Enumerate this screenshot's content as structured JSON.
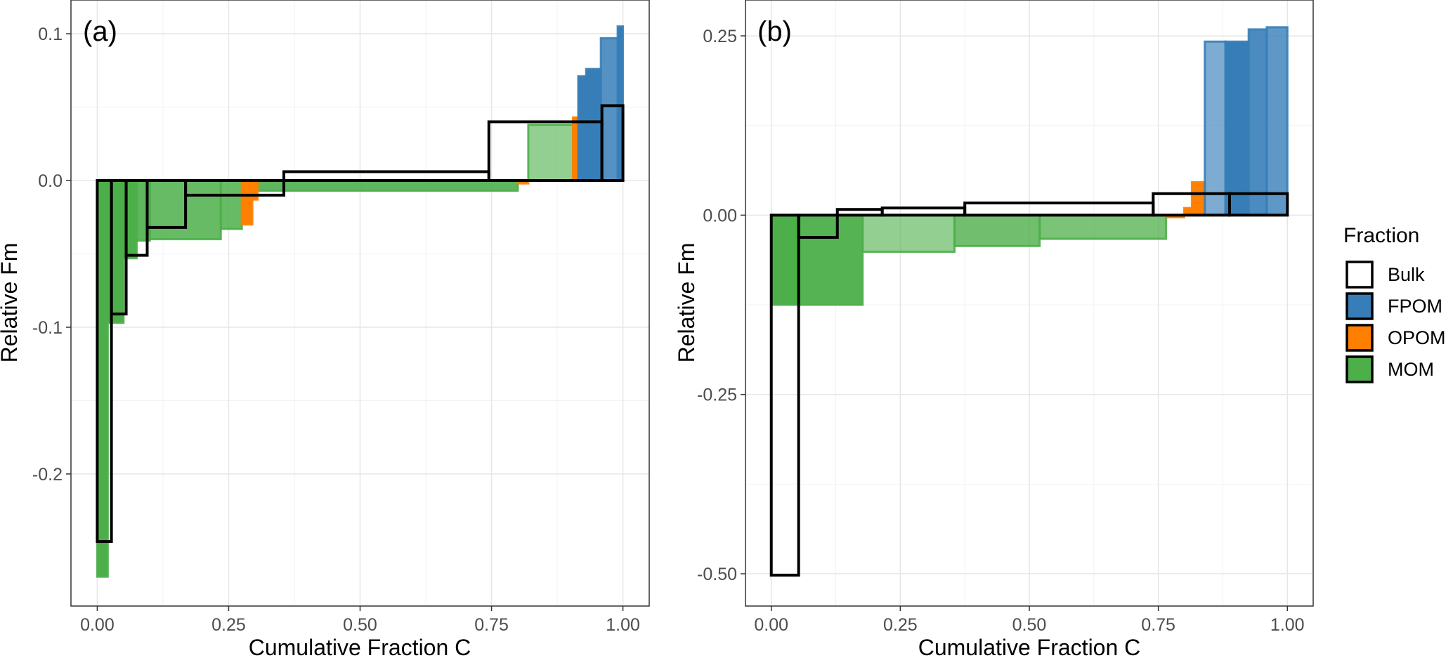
{
  "chart_data": [
    {
      "type": "bar",
      "panel_label": "(a)",
      "title": "",
      "xlabel": "Cumulative Fraction C",
      "ylabel": "Relative Fm",
      "xlim": [
        -0.05,
        1.05
      ],
      "ylim": [
        -0.29,
        0.123
      ],
      "x_ticks": [
        0,
        0.25,
        0.5,
        0.75,
        1.0
      ],
      "x_tick_labels": [
        "0.00",
        "0.25",
        "0.50",
        "0.75",
        "1.00"
      ],
      "y_ticks": [
        -0.2,
        -0.1,
        0.0,
        0.1
      ],
      "y_tick_labels": [
        "-0.2",
        "-0.1",
        "0.0",
        "0.1"
      ],
      "grid": true,
      "series": [
        {
          "name": "MOM",
          "color": "#4daf4a",
          "bars": [
            {
              "x0": 0.0,
              "x1": 0.02,
              "y": -0.27,
              "alpha": 1.0
            },
            {
              "x0": 0.02,
              "x1": 0.05,
              "y": -0.097,
              "alpha": 1.0
            },
            {
              "x0": 0.05,
              "x1": 0.075,
              "y": -0.053,
              "alpha": 1.0
            },
            {
              "x0": 0.075,
              "x1": 0.1,
              "y": -0.041,
              "alpha": 0.9
            },
            {
              "x0": 0.1,
              "x1": 0.235,
              "y": -0.04,
              "alpha": 0.85
            },
            {
              "x0": 0.235,
              "x1": 0.275,
              "y": -0.033,
              "alpha": 0.85
            },
            {
              "x0": 0.305,
              "x1": 0.8,
              "y": -0.007,
              "alpha": 0.9
            },
            {
              "x0": 0.82,
              "x1": 0.905,
              "y": 0.038,
              "alpha": 0.6
            }
          ]
        },
        {
          "name": "OPOM",
          "color": "#ff7f00",
          "bars": [
            {
              "x0": 0.275,
              "x1": 0.295,
              "y": -0.03,
              "alpha": 1.0
            },
            {
              "x0": 0.295,
              "x1": 0.305,
              "y": -0.013,
              "alpha": 1.0
            },
            {
              "x0": 0.8,
              "x1": 0.82,
              "y": -0.002,
              "alpha": 1.0
            },
            {
              "x0": 0.905,
              "x1": 0.915,
              "y": 0.043,
              "alpha": 1.0
            }
          ]
        },
        {
          "name": "FPOM",
          "color": "#377eb8",
          "bars": [
            {
              "x0": 0.915,
              "x1": 0.93,
              "y": 0.071,
              "alpha": 1.0
            },
            {
              "x0": 0.93,
              "x1": 0.958,
              "y": 0.076,
              "alpha": 1.0
            },
            {
              "x0": 0.958,
              "x1": 0.99,
              "y": 0.097,
              "alpha": 0.85
            },
            {
              "x0": 0.99,
              "x1": 1.0,
              "y": 0.105,
              "alpha": 1.0
            }
          ]
        },
        {
          "name": "Bulk",
          "color": "#000000",
          "bars": [
            {
              "x0": 0.0,
              "x1": 0.027,
              "y": -0.246
            },
            {
              "x0": 0.027,
              "x1": 0.055,
              "y": -0.091
            },
            {
              "x0": 0.055,
              "x1": 0.095,
              "y": -0.051
            },
            {
              "x0": 0.095,
              "x1": 0.168,
              "y": -0.032
            },
            {
              "x0": 0.168,
              "x1": 0.355,
              "y": -0.01
            },
            {
              "x0": 0.355,
              "x1": 0.745,
              "y": 0.006
            },
            {
              "x0": 0.745,
              "x1": 0.96,
              "y": 0.04
            },
            {
              "x0": 0.96,
              "x1": 1.0,
              "y": 0.051
            }
          ]
        }
      ]
    },
    {
      "type": "bar",
      "panel_label": "(b)",
      "title": "",
      "xlabel": "Cumulative Fraction C",
      "ylabel": "Relative Fm",
      "xlim": [
        -0.05,
        1.05
      ],
      "ylim": [
        -0.545,
        0.3
      ],
      "x_ticks": [
        0,
        0.25,
        0.5,
        0.75,
        1.0
      ],
      "x_tick_labels": [
        "0.00",
        "0.25",
        "0.50",
        "0.75",
        "1.00"
      ],
      "y_ticks": [
        -0.5,
        -0.25,
        0.0,
        0.25
      ],
      "y_tick_labels": [
        "-0.50",
        "-0.25",
        "0.00",
        "0.25"
      ],
      "grid": true,
      "series": [
        {
          "name": "MOM",
          "color": "#4daf4a",
          "bars": [
            {
              "x0": 0.0,
              "x1": 0.055,
              "y": -0.125,
              "alpha": 1.0
            },
            {
              "x0": 0.055,
              "x1": 0.177,
              "y": -0.125,
              "alpha": 0.95
            },
            {
              "x0": 0.177,
              "x1": 0.355,
              "y": -0.051,
              "alpha": 0.6
            },
            {
              "x0": 0.355,
              "x1": 0.52,
              "y": -0.043,
              "alpha": 0.8
            },
            {
              "x0": 0.52,
              "x1": 0.765,
              "y": -0.033,
              "alpha": 0.75
            }
          ]
        },
        {
          "name": "OPOM",
          "color": "#ff7f00",
          "bars": [
            {
              "x0": 0.765,
              "x1": 0.8,
              "y": -0.003,
              "alpha": 1.0
            },
            {
              "x0": 0.8,
              "x1": 0.815,
              "y": 0.01,
              "alpha": 1.0
            },
            {
              "x0": 0.815,
              "x1": 0.84,
              "y": 0.046,
              "alpha": 1.0
            }
          ]
        },
        {
          "name": "FPOM",
          "color": "#377eb8",
          "bars": [
            {
              "x0": 0.84,
              "x1": 0.88,
              "y": 0.242,
              "alpha": 0.65
            },
            {
              "x0": 0.88,
              "x1": 0.925,
              "y": 0.242,
              "alpha": 1.0
            },
            {
              "x0": 0.925,
              "x1": 0.96,
              "y": 0.259,
              "alpha": 0.9
            },
            {
              "x0": 0.96,
              "x1": 1.0,
              "y": 0.262,
              "alpha": 0.8
            }
          ]
        },
        {
          "name": "Bulk",
          "color": "#000000",
          "bars": [
            {
              "x0": 0.0,
              "x1": 0.053,
              "y": -0.502
            },
            {
              "x0": 0.053,
              "x1": 0.128,
              "y": -0.031
            },
            {
              "x0": 0.128,
              "x1": 0.215,
              "y": 0.008
            },
            {
              "x0": 0.215,
              "x1": 0.375,
              "y": 0.01
            },
            {
              "x0": 0.375,
              "x1": 0.74,
              "y": 0.017
            },
            {
              "x0": 0.74,
              "x1": 0.888,
              "y": 0.03
            },
            {
              "x0": 0.888,
              "x1": 1.0,
              "y": 0.03
            }
          ]
        }
      ]
    }
  ],
  "legend": {
    "title": "Fraction",
    "placement": "right",
    "items": [
      {
        "label": "Bulk",
        "fill": "#ffffff"
      },
      {
        "label": "FPOM",
        "fill": "#377eb8"
      },
      {
        "label": "OPOM",
        "fill": "#ff7f00"
      },
      {
        "label": "MOM",
        "fill": "#4daf4a"
      }
    ]
  }
}
